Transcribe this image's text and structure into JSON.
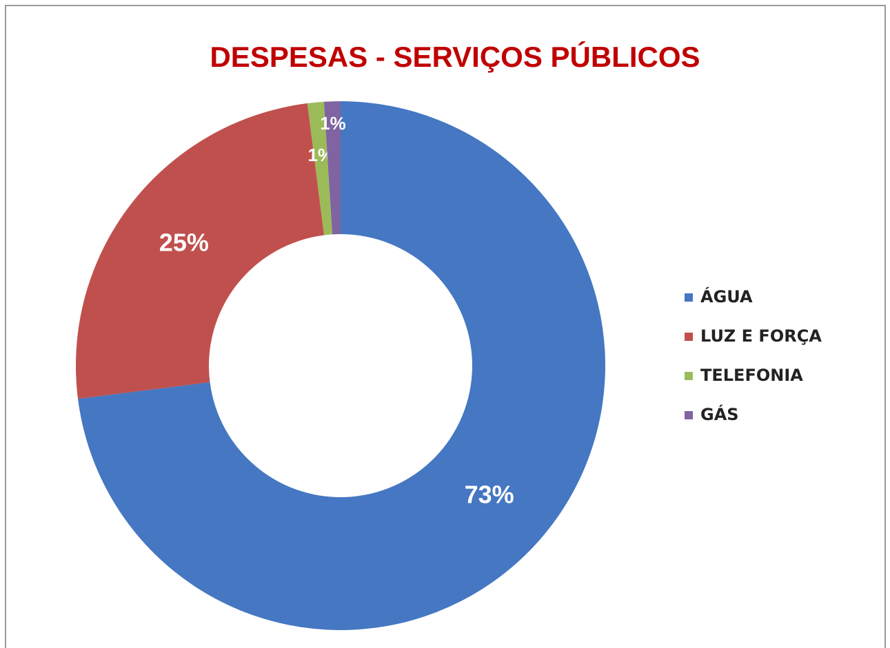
{
  "chart_data": {
    "type": "donut",
    "title": "DESPESAS - SERVIÇOS PÚBLICOS",
    "categories": [
      "ÁGUA",
      "LUZ E FORÇA",
      "TELEFONIA",
      "GÁS"
    ],
    "values": [
      73,
      25,
      1,
      1
    ],
    "value_labels": [
      "73%",
      "25%",
      "1%",
      "1%"
    ],
    "colors": [
      "#4577c2",
      "#c0504d",
      "#9bbb59",
      "#8064a2"
    ],
    "legend": "right"
  }
}
